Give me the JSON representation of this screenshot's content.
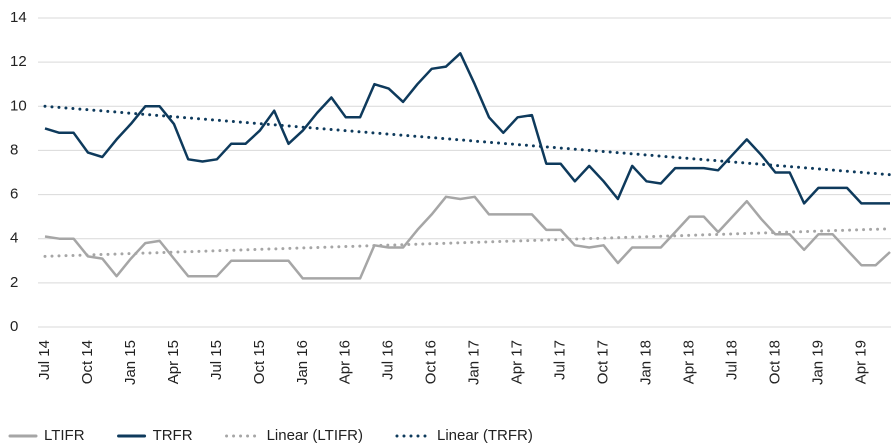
{
  "chart_data": {
    "type": "line",
    "categories": [
      "Jul 14",
      null,
      null,
      "Oct 14",
      null,
      null,
      "Jan 15",
      null,
      null,
      "Apr 15",
      null,
      null,
      "Jul 15",
      null,
      null,
      "Oct 15",
      null,
      null,
      "Jan 16",
      null,
      null,
      "Apr 16",
      null,
      null,
      "Jul 16",
      null,
      null,
      "Oct 16",
      null,
      null,
      "Jan 17",
      null,
      null,
      "Apr 17",
      null,
      null,
      "Jul 17",
      null,
      null,
      "Oct 17",
      null,
      null,
      "Jan 18",
      null,
      null,
      "Apr 18",
      null,
      null,
      "Jul 18",
      null,
      null,
      "Oct 18",
      null,
      null,
      "Jan 19",
      null,
      null,
      "Apr 19",
      null,
      null
    ],
    "series": [
      {
        "name": "LTIFR",
        "color": "#a6a6a6",
        "values": [
          4.1,
          4.0,
          4.0,
          3.2,
          3.1,
          2.3,
          3.1,
          3.8,
          3.9,
          3.1,
          2.3,
          2.3,
          2.3,
          3.0,
          3.0,
          3.0,
          3.0,
          3.0,
          2.2,
          2.2,
          2.2,
          2.2,
          2.2,
          3.7,
          3.6,
          3.6,
          4.4,
          5.1,
          5.9,
          5.8,
          5.9,
          5.1,
          5.1,
          5.1,
          5.1,
          4.4,
          4.4,
          3.7,
          3.6,
          3.7,
          2.9,
          3.6,
          3.6,
          3.6,
          4.3,
          5.0,
          5.0,
          4.3,
          5.0,
          5.7,
          4.9,
          4.2,
          4.2,
          3.5,
          4.2,
          4.2,
          3.5,
          2.8,
          2.8,
          3.4
        ]
      },
      {
        "name": "TRFR",
        "color": "#0e3a5c",
        "values": [
          9.0,
          8.8,
          8.8,
          7.9,
          7.7,
          8.5,
          9.2,
          10.0,
          10.0,
          9.2,
          7.6,
          7.5,
          7.6,
          8.3,
          8.3,
          8.9,
          9.8,
          8.3,
          8.9,
          9.7,
          10.4,
          9.5,
          9.5,
          11.0,
          10.8,
          10.2,
          11.0,
          11.7,
          11.8,
          12.4,
          11.0,
          9.5,
          8.8,
          9.5,
          9.6,
          7.4,
          7.4,
          6.6,
          7.3,
          6.6,
          5.8,
          7.3,
          6.6,
          6.5,
          7.2,
          7.2,
          7.2,
          7.1,
          7.8,
          8.5,
          7.8,
          7.0,
          7.0,
          5.6,
          6.3,
          6.3,
          6.3,
          5.6,
          5.6,
          5.6
        ]
      }
    ],
    "trendlines": [
      {
        "name": "Linear (LTIFR)",
        "color": "#a6a6a6",
        "start": 3.2,
        "end": 4.45
      },
      {
        "name": "Linear (TRFR)",
        "color": "#0e3a5c",
        "start": 10.0,
        "end": 6.9
      }
    ],
    "ylim": [
      0,
      14
    ],
    "yticks": [
      0,
      2,
      4,
      6,
      8,
      10,
      12,
      14
    ],
    "grid": true,
    "legend": "bottom"
  }
}
